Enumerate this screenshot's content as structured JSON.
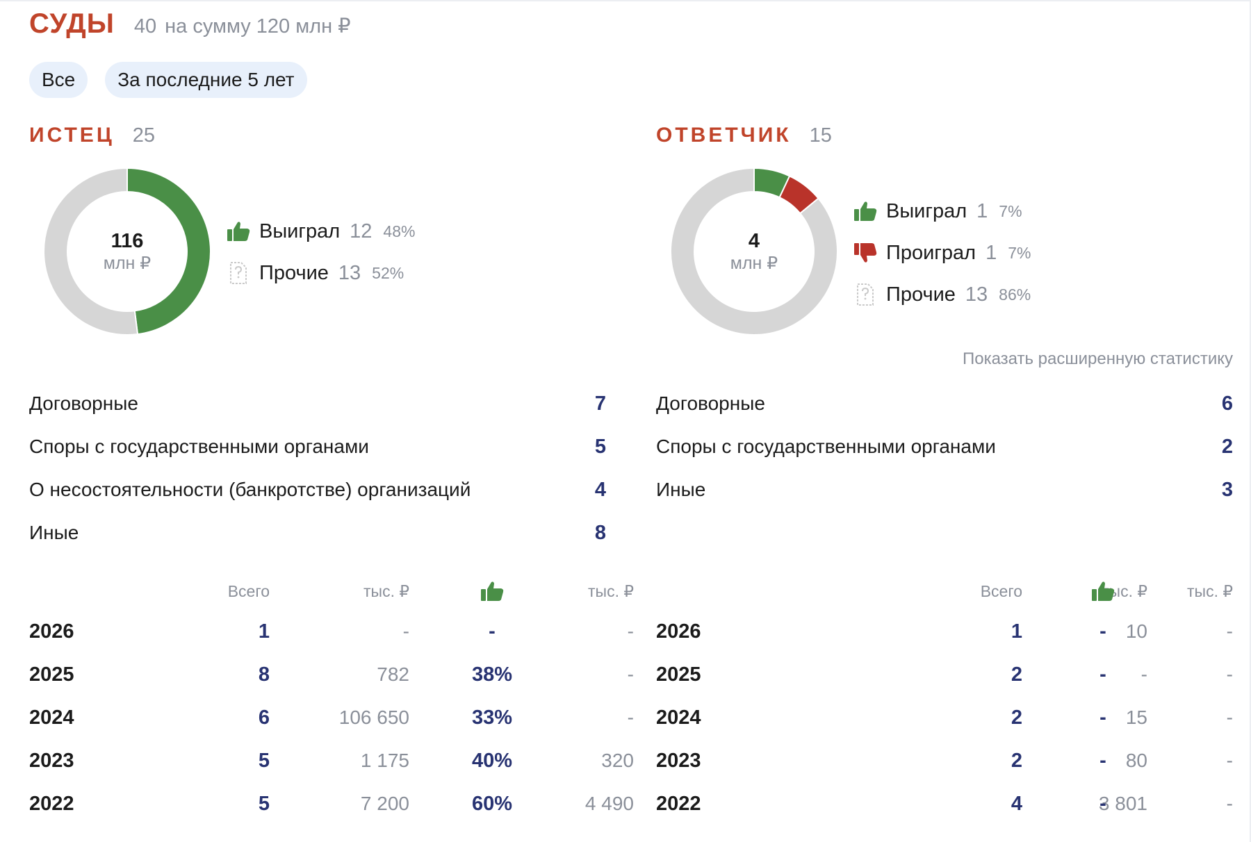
{
  "header": {
    "title": "СУДЫ",
    "count": "40",
    "sum_text": "на сумму 120 млн ₽"
  },
  "filters": [
    "Все",
    "За последние 5 лет"
  ],
  "colors": {
    "won": "#4a8f47",
    "lost": "#b9332a",
    "other": "#d6d6d6",
    "accent": "#c0442a",
    "value": "#283372"
  },
  "plaintiff": {
    "title": "ИСТЕЦ",
    "count": "25",
    "donut": {
      "value": "116",
      "unit": "млн ₽",
      "segments": [
        {
          "name": "won",
          "fraction": 0.48
        },
        {
          "name": "other",
          "fraction": 0.52
        }
      ]
    },
    "legend": [
      {
        "icon": "thumbs-up-icon",
        "label": "Выиграл",
        "count": "12",
        "pct": "48%"
      },
      {
        "icon": "document-question-icon",
        "label": "Прочие",
        "count": "13",
        "pct": "52%"
      }
    ],
    "categories": [
      {
        "label": "Договорные",
        "value": "7"
      },
      {
        "label": "Споры с государственными органами",
        "value": "5"
      },
      {
        "label": "О несостоятельности (банкротстве) организаций",
        "value": "4"
      },
      {
        "label": "Иные",
        "value": "8"
      }
    ],
    "table": {
      "headers": {
        "total": "Всего",
        "sum": "тыс. ₽",
        "won_icon": "thumbs-up-icon",
        "won_sum": "тыс. ₽"
      },
      "rows": [
        {
          "year": "2026",
          "total": "1",
          "sum": "-",
          "won": "-",
          "won_sum": "-"
        },
        {
          "year": "2025",
          "total": "8",
          "sum": "782",
          "won": "38%",
          "won_sum": "-"
        },
        {
          "year": "2024",
          "total": "6",
          "sum": "106 650",
          "won": "33%",
          "won_sum": "-"
        },
        {
          "year": "2023",
          "total": "5",
          "sum": "1 175",
          "won": "40%",
          "won_sum": "320"
        },
        {
          "year": "2022",
          "total": "5",
          "sum": "7 200",
          "won": "60%",
          "won_sum": "4 490"
        }
      ]
    }
  },
  "defendant": {
    "title": "ОТВЕТЧИК",
    "count": "15",
    "donut": {
      "value": "4",
      "unit": "млн ₽",
      "segments": [
        {
          "name": "won",
          "fraction": 0.07
        },
        {
          "name": "lost",
          "fraction": 0.07
        },
        {
          "name": "other",
          "fraction": 0.86
        }
      ]
    },
    "legend": [
      {
        "icon": "thumbs-up-icon",
        "label": "Выиграл",
        "count": "1",
        "pct": "7%"
      },
      {
        "icon": "thumbs-down-icon",
        "label": "Проиграл",
        "count": "1",
        "pct": "7%"
      },
      {
        "icon": "document-question-icon",
        "label": "Прочие",
        "count": "13",
        "pct": "86%"
      }
    ],
    "extended_link": "Показать расширенную статистику",
    "categories": [
      {
        "label": "Договорные",
        "value": "6"
      },
      {
        "label": "Споры с государственными органами",
        "value": "2"
      },
      {
        "label": "Иные",
        "value": "3"
      }
    ],
    "table": {
      "headers": {
        "total": "Всего",
        "sum": "тыс. ₽",
        "won_icon": "thumbs-up-icon",
        "won_sum": "тыс. ₽"
      },
      "rows": [
        {
          "year": "2026",
          "total": "1",
          "sum": "10",
          "won": "-",
          "won_sum": "-"
        },
        {
          "year": "2025",
          "total": "2",
          "sum": "-",
          "won": "-",
          "won_sum": "-"
        },
        {
          "year": "2024",
          "total": "2",
          "sum": "15",
          "won": "-",
          "won_sum": "-"
        },
        {
          "year": "2023",
          "total": "2",
          "sum": "80",
          "won": "-",
          "won_sum": "-"
        },
        {
          "year": "2022",
          "total": "4",
          "sum": "3 801",
          "won": "-",
          "won_sum": "-"
        }
      ]
    }
  }
}
